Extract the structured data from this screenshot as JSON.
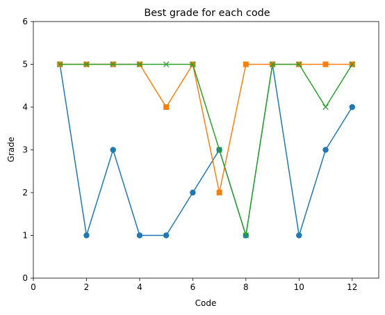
{
  "chart_data": {
    "type": "line",
    "title": "Best grade for each code",
    "xlabel": "Code",
    "ylabel": "Grade",
    "xlim": [
      0,
      13
    ],
    "ylim": [
      0,
      6
    ],
    "xticks": [
      0,
      2,
      4,
      6,
      8,
      10,
      12
    ],
    "yticks": [
      0,
      1,
      2,
      3,
      4,
      5,
      6
    ],
    "grid": false,
    "legend": "none",
    "x": [
      1,
      2,
      3,
      4,
      5,
      6,
      7,
      8,
      9,
      10,
      11,
      12
    ],
    "series": [
      {
        "color": "#1f77b4",
        "marker": "circle",
        "values": [
          5,
          1,
          3,
          1,
          1,
          2,
          3,
          1,
          5,
          1,
          3,
          4
        ]
      },
      {
        "color": "#ff7f0e",
        "marker": "square",
        "values": [
          5,
          5,
          5,
          5,
          4,
          5,
          2,
          5,
          5,
          5,
          5,
          5
        ]
      },
      {
        "color": "#2ca02c",
        "marker": "x",
        "values": [
          5,
          5,
          5,
          5,
          5,
          5,
          3,
          1,
          5,
          5,
          4,
          5
        ]
      }
    ]
  }
}
